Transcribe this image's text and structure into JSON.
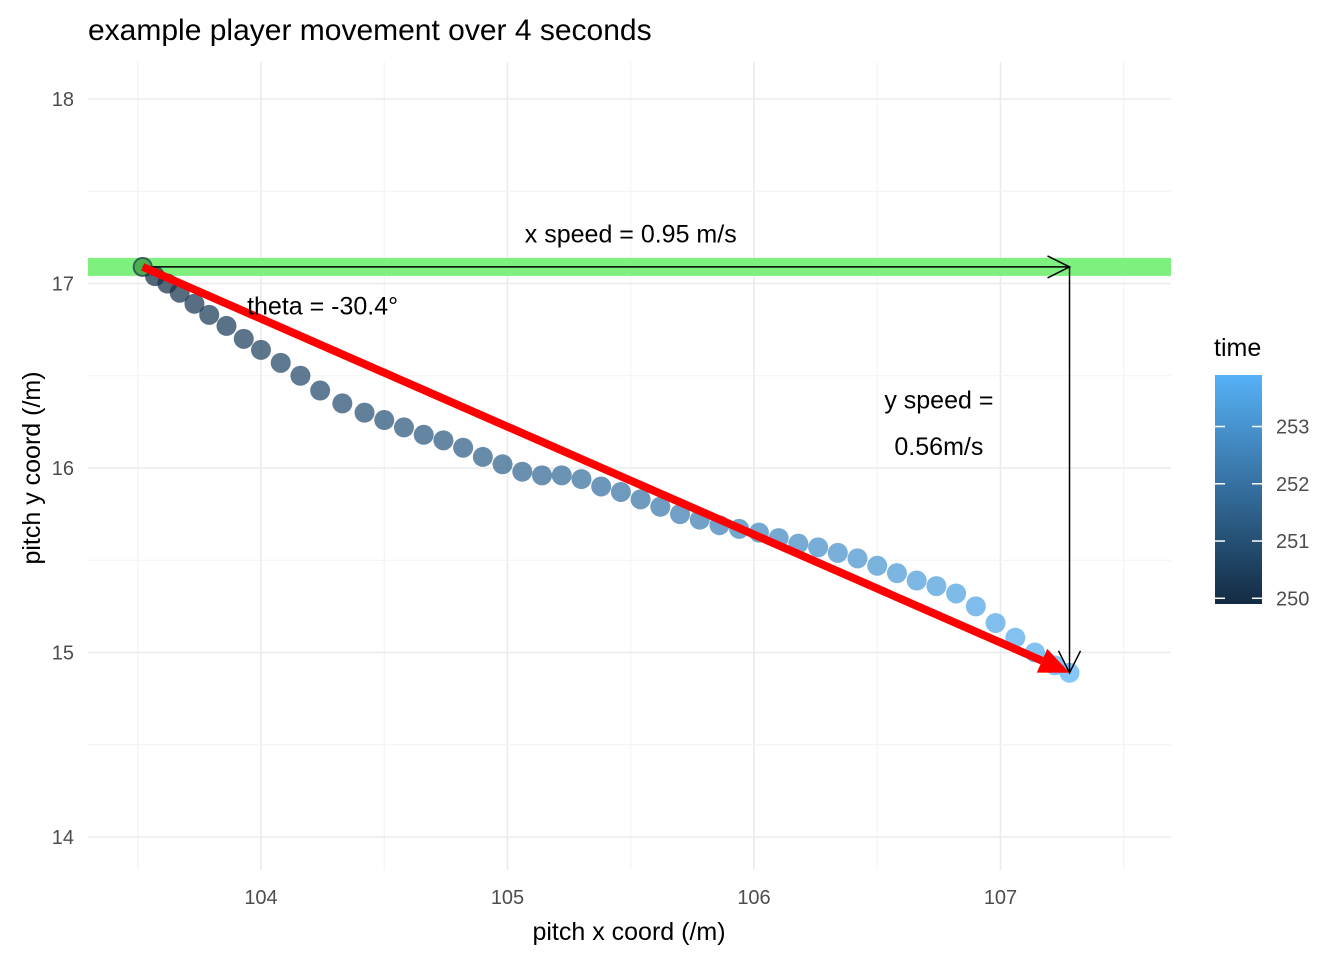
{
  "chart_data": {
    "type": "scatter",
    "title": "example player movement over 4 seconds",
    "xlabel": "pitch x coord (/m)",
    "ylabel": "pitch y coord (/m)",
    "xlim": [
      103.3,
      107.7
    ],
    "ylim": [
      13.85,
      18.2
    ],
    "xticks": [
      104,
      105,
      106,
      107
    ],
    "yticks": [
      14,
      15,
      16,
      17,
      18
    ],
    "grid": true,
    "path": {
      "x": [
        103.52,
        103.57,
        103.62,
        103.67,
        103.73,
        103.79,
        103.86,
        103.93,
        104.0,
        104.08,
        104.16,
        104.24,
        104.33,
        104.42,
        104.5,
        104.58,
        104.66,
        104.74,
        104.82,
        104.9,
        104.98,
        105.06,
        105.14,
        105.22,
        105.3,
        105.38,
        105.46,
        105.54,
        105.62,
        105.7,
        105.78,
        105.86,
        105.94,
        106.02,
        106.1,
        106.18,
        106.26,
        106.34,
        106.42,
        106.5,
        106.58,
        106.66,
        106.74,
        106.82,
        106.9,
        106.98,
        107.06,
        107.14,
        107.22,
        107.28
      ],
      "y": [
        17.09,
        17.04,
        17.0,
        16.95,
        16.89,
        16.83,
        16.77,
        16.7,
        16.64,
        16.57,
        16.5,
        16.42,
        16.35,
        16.3,
        16.26,
        16.22,
        16.18,
        16.15,
        16.11,
        16.06,
        16.02,
        15.98,
        15.96,
        15.96,
        15.94,
        15.9,
        15.87,
        15.83,
        15.79,
        15.75,
        15.72,
        15.69,
        15.67,
        15.65,
        15.62,
        15.59,
        15.57,
        15.54,
        15.51,
        15.47,
        15.43,
        15.39,
        15.36,
        15.32,
        15.25,
        15.16,
        15.08,
        15.0,
        14.93,
        14.89
      ],
      "time_range": [
        249.9,
        253.9
      ]
    },
    "start_point": {
      "x": 103.52,
      "y": 17.09
    },
    "horizontal_band_y": 17.09,
    "x_arrow": {
      "x0": 103.52,
      "y0": 17.09,
      "x1": 107.28,
      "y1": 17.09
    },
    "y_arrow": {
      "x0": 107.28,
      "y0": 17.09,
      "x1": 107.28,
      "y1": 14.89
    },
    "direction_arrow": {
      "x0": 103.52,
      "y0": 17.09,
      "x1": 107.28,
      "y1": 14.89
    },
    "annotations": {
      "x_speed": {
        "text": "x speed = 0.95 m/s",
        "x": 105.5,
        "y": 17.27
      },
      "theta": {
        "text": "theta = -30.4°",
        "x": 104.25,
        "y": 16.88
      },
      "y_speed_line1": {
        "text": "y speed =",
        "x": 106.75,
        "y": 16.37
      },
      "y_speed_line2": {
        "text": "0.56m/s",
        "x": 106.75,
        "y": 16.12
      }
    },
    "legend": {
      "title": "time",
      "position": "right",
      "breaks": [
        250,
        251,
        252,
        253
      ],
      "range": [
        249.9,
        253.9
      ],
      "color_low": "#132B43",
      "color_high": "#56B1F7"
    },
    "colors": {
      "direction_arrow": "#ff0000",
      "band": "#7ef07e",
      "start_point": "#4cae4c"
    }
  }
}
